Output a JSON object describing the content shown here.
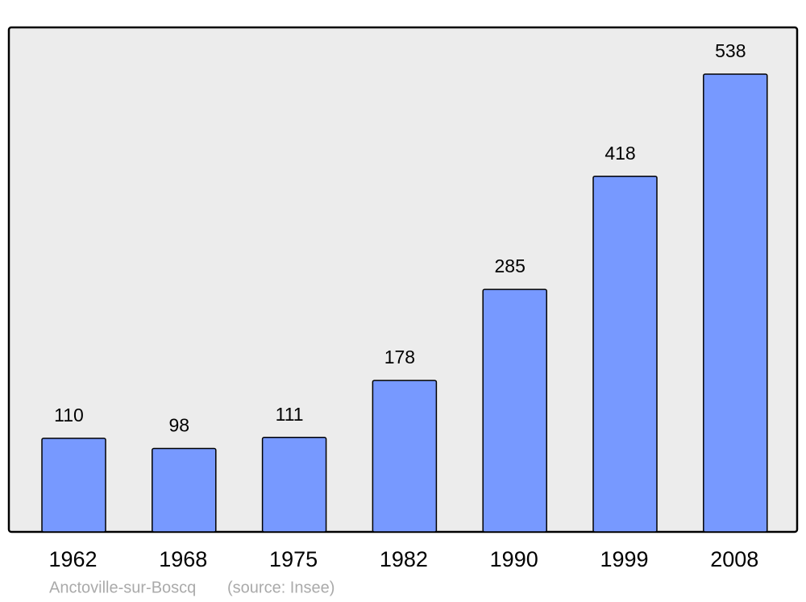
{
  "chart_data": {
    "type": "bar",
    "title": "Anctoville-sur-Boscq",
    "source": "(source: Insee)",
    "categories": [
      "1962",
      "1968",
      "1975",
      "1982",
      "1990",
      "1999",
      "2008"
    ],
    "values": [
      110,
      98,
      111,
      178,
      285,
      418,
      538
    ],
    "color": "#7799ff"
  }
}
